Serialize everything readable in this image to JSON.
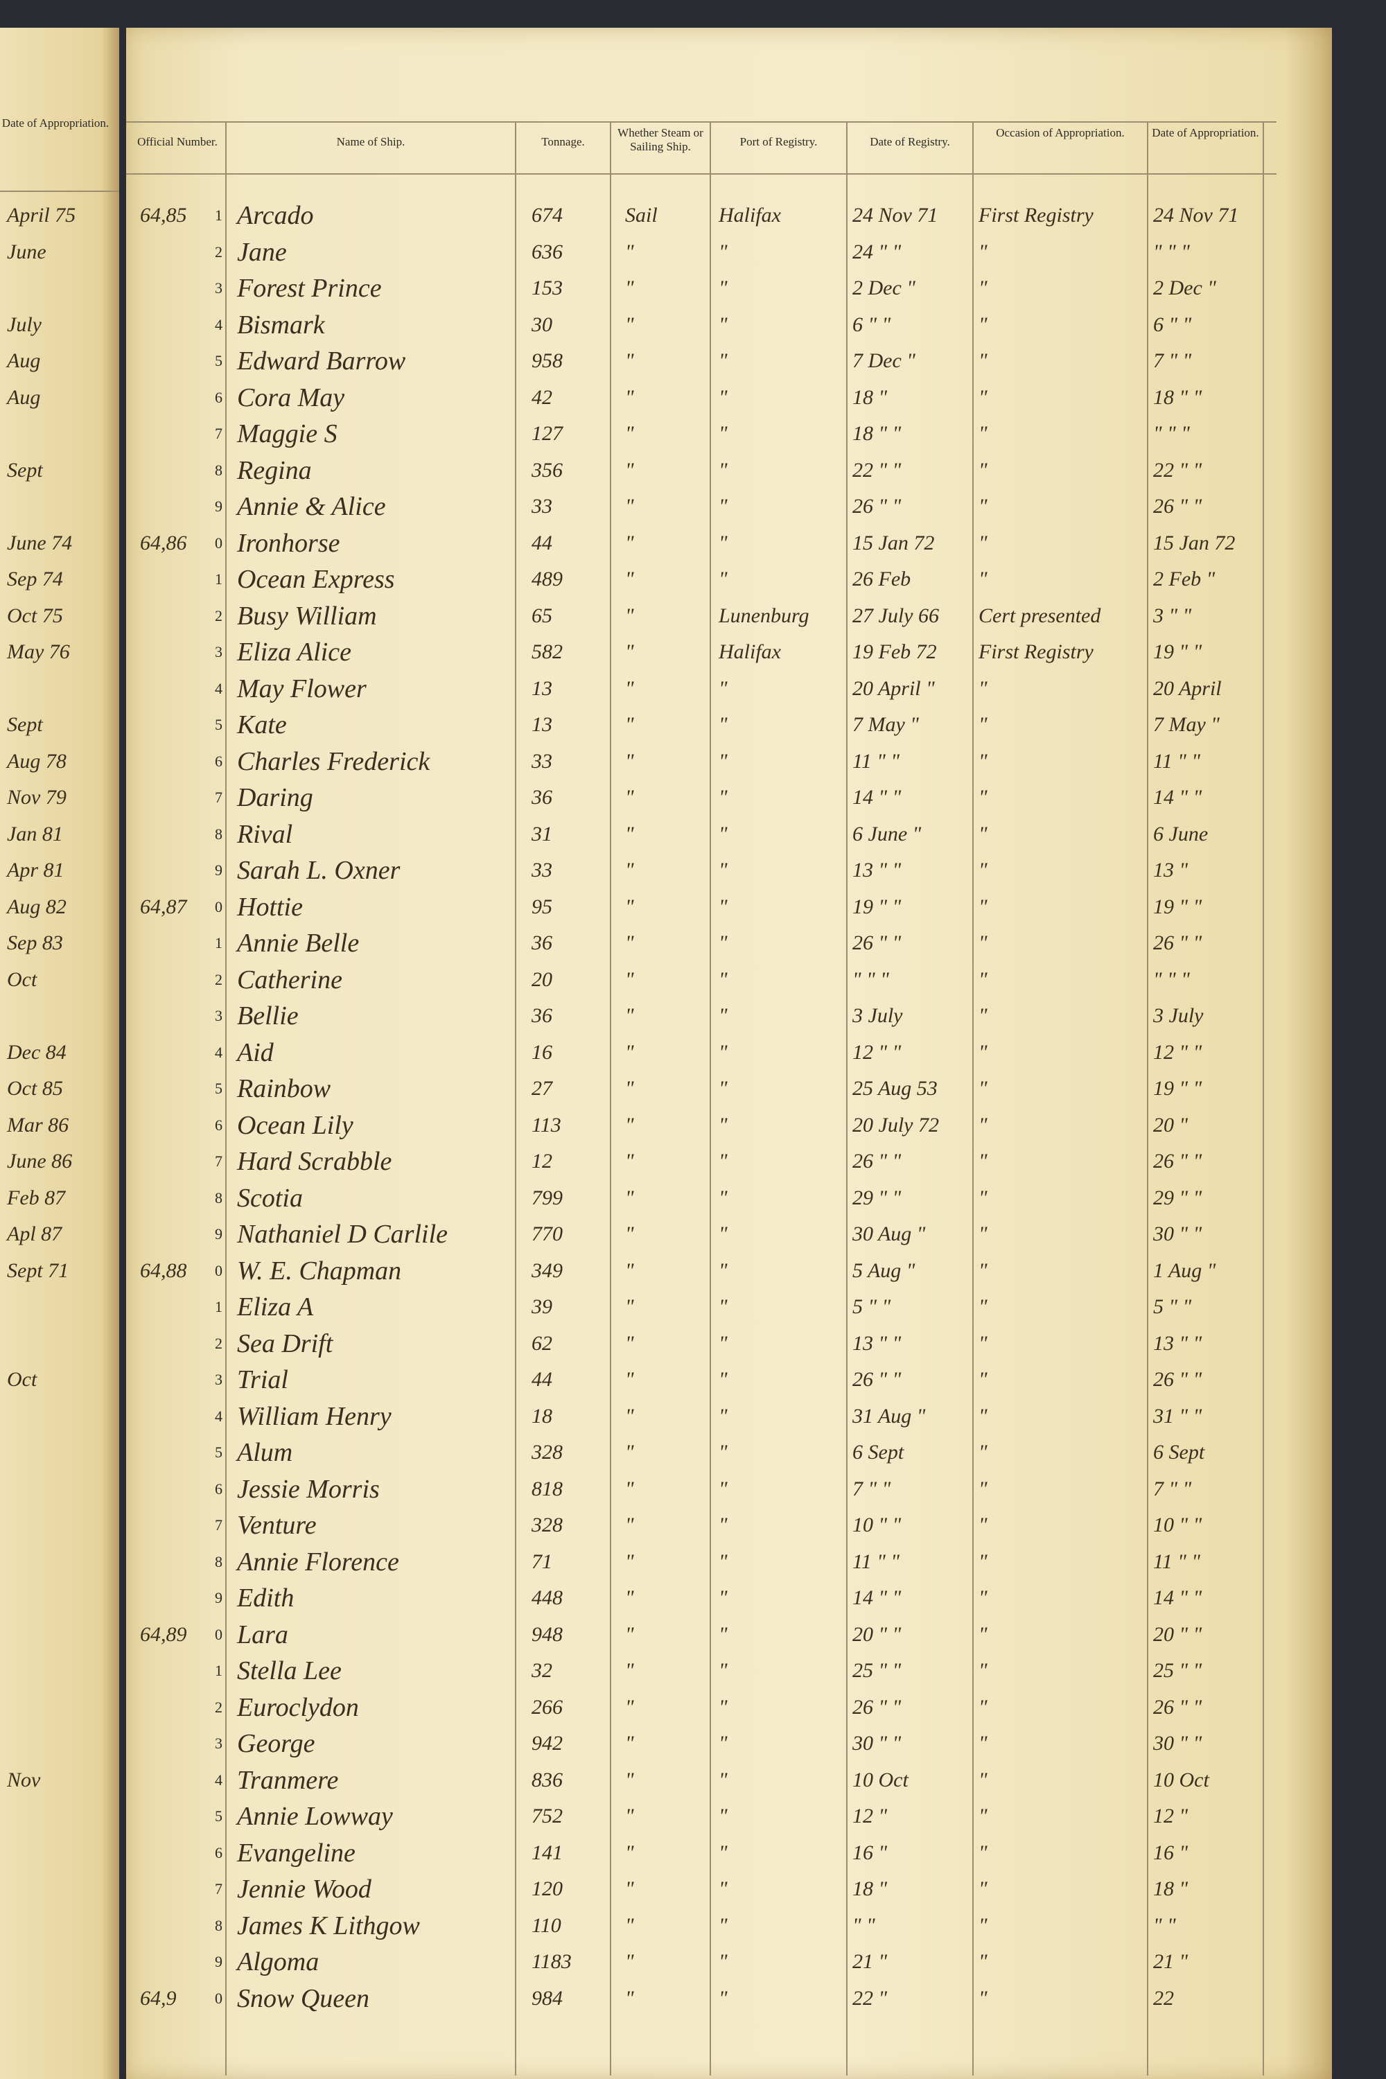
{
  "left_page": {
    "header": "Date of Appropriation.",
    "entries": [
      "April 75",
      "June",
      null,
      "July",
      "Aug",
      "Aug",
      null,
      "Sept",
      null,
      "June 74",
      "Sep 74",
      "Oct 75",
      "May 76",
      null,
      "Sept",
      "Aug 78",
      "Nov 79",
      "Jan 81",
      "Apr 81",
      "Aug 82",
      "Sep 83",
      "Oct",
      null,
      "Dec 84",
      "Oct 85",
      "Mar 86",
      "June 86",
      "Feb 87",
      "Apl 87",
      "Sept 71",
      null,
      null,
      "Oct",
      null,
      null,
      null,
      null,
      null,
      null,
      null,
      null,
      null,
      null,
      "Nov",
      null,
      null,
      null,
      null,
      null,
      null
    ]
  },
  "table": {
    "headers": [
      "Official Number.",
      "Name of Ship.",
      "Tonnage.",
      "Whether Steam or Sailing Ship.",
      "Port of Registry.",
      "Date of Registry.",
      "Occasion of Appropriation.",
      "Date of Appropriation."
    ],
    "rows": [
      [
        "64,85",
        "1",
        "Arcado",
        674,
        "Sail",
        "Halifax",
        "24 Nov 71",
        "First Registry",
        "24 Nov 71"
      ],
      [
        null,
        "2",
        "Jane",
        636,
        "\"",
        "\"",
        "24 \" \"",
        "\"",
        "\" \" \""
      ],
      [
        null,
        "3",
        "Forest Prince",
        153,
        "\"",
        "\"",
        "2 Dec \"",
        "\"",
        "2 Dec \""
      ],
      [
        null,
        "4",
        "Bismark",
        30,
        "\"",
        "\"",
        "6 \" \"",
        "\"",
        "6 \" \""
      ],
      [
        null,
        "5",
        "Edward Barrow",
        958,
        "\"",
        "\"",
        "7 Dec \"",
        "\"",
        "7 \" \""
      ],
      [
        null,
        "6",
        "Cora May",
        42,
        "\"",
        "\"",
        "18 \"",
        "\"",
        "18 \" \""
      ],
      [
        null,
        "7",
        "Maggie S",
        127,
        "\"",
        "\"",
        "18 \" \"",
        "\"",
        "\" \" \""
      ],
      [
        null,
        "8",
        "Regina",
        356,
        "\"",
        "\"",
        "22 \" \"",
        "\"",
        "22 \" \""
      ],
      [
        null,
        "9",
        "Annie & Alice",
        33,
        "\"",
        "\"",
        "26 \" \"",
        "\"",
        "26 \" \""
      ],
      [
        "64,86",
        "0",
        "Ironhorse",
        44,
        "\"",
        "\"",
        "15 Jan 72",
        "\"",
        "15 Jan 72"
      ],
      [
        null,
        "1",
        "Ocean Express",
        489,
        "\"",
        "\"",
        "26 Feb",
        "\"",
        "2 Feb \""
      ],
      [
        null,
        "2",
        "Busy William",
        65,
        "\"",
        "Lunenburg",
        "27 July 66",
        "Cert presented",
        "3 \" \""
      ],
      [
        null,
        "3",
        "Eliza Alice",
        582,
        "\"",
        "Halifax",
        "19 Feb 72",
        "First Registry",
        "19 \" \""
      ],
      [
        null,
        "4",
        "May Flower",
        13,
        "\"",
        "\"",
        "20 April \"",
        "\"",
        "20 April"
      ],
      [
        null,
        "5",
        "Kate",
        13,
        "\"",
        "\"",
        "7 May \"",
        "\"",
        "7 May \""
      ],
      [
        null,
        "6",
        "Charles Frederick",
        33,
        "\"",
        "\"",
        "11 \" \"",
        "\"",
        "11 \" \""
      ],
      [
        null,
        "7",
        "Daring",
        36,
        "\"",
        "\"",
        "14 \" \"",
        "\"",
        "14 \" \""
      ],
      [
        null,
        "8",
        "Rival",
        31,
        "\"",
        "\"",
        "6 June \"",
        "\"",
        "6 June"
      ],
      [
        null,
        "9",
        "Sarah L. Oxner",
        33,
        "\"",
        "\"",
        "13 \" \"",
        "\"",
        "13 \""
      ],
      [
        "64,87",
        "0",
        "Hottie",
        95,
        "\"",
        "\"",
        "19 \" \"",
        "\"",
        "19 \" \""
      ],
      [
        null,
        "1",
        "Annie Belle",
        36,
        "\"",
        "\"",
        "26 \" \"",
        "\"",
        "26 \" \""
      ],
      [
        null,
        "2",
        "Catherine",
        20,
        "\"",
        "\"",
        "\" \" \"",
        "\"",
        "\" \" \""
      ],
      [
        null,
        "3",
        "Bellie",
        36,
        "\"",
        "\"",
        "3 July",
        "\"",
        "3 July"
      ],
      [
        null,
        "4",
        "Aid",
        16,
        "\"",
        "\"",
        "12 \" \"",
        "\"",
        "12 \" \""
      ],
      [
        null,
        "5",
        "Rainbow",
        27,
        "\"",
        "\"",
        "25 Aug 53",
        "\"",
        "19 \" \""
      ],
      [
        null,
        "6",
        "Ocean Lily",
        113,
        "\"",
        "\"",
        "20 July 72",
        "\"",
        "20 \""
      ],
      [
        null,
        "7",
        "Hard Scrabble",
        12,
        "\"",
        "\"",
        "26 \" \"",
        "\"",
        "26 \" \""
      ],
      [
        null,
        "8",
        "Scotia",
        799,
        "\"",
        "\"",
        "29 \" \"",
        "\"",
        "29 \" \""
      ],
      [
        null,
        "9",
        "Nathaniel D Carlile",
        770,
        "\"",
        "\"",
        "30 Aug \"",
        "\"",
        "30 \" \""
      ],
      [
        "64,88",
        "0",
        "W. E. Chapman",
        349,
        "\"",
        "\"",
        "5 Aug \"",
        "\"",
        "1 Aug \""
      ],
      [
        null,
        "1",
        "Eliza A",
        39,
        "\"",
        "\"",
        "5 \" \"",
        "\"",
        "5 \" \""
      ],
      [
        null,
        "2",
        "Sea Drift",
        62,
        "\"",
        "\"",
        "13 \" \"",
        "\"",
        "13 \" \""
      ],
      [
        null,
        "3",
        "Trial",
        44,
        "\"",
        "\"",
        "26 \" \"",
        "\"",
        "26 \" \""
      ],
      [
        null,
        "4",
        "William Henry",
        18,
        "\"",
        "\"",
        "31 Aug \"",
        "\"",
        "31 \" \""
      ],
      [
        null,
        "5",
        "Alum",
        328,
        "\"",
        "\"",
        "6 Sept",
        "\"",
        "6 Sept"
      ],
      [
        null,
        "6",
        "Jessie Morris",
        818,
        "\"",
        "\"",
        "7 \" \"",
        "\"",
        "7 \" \""
      ],
      [
        null,
        "7",
        "Venture",
        328,
        "\"",
        "\"",
        "10 \" \"",
        "\"",
        "10 \" \""
      ],
      [
        null,
        "8",
        "Annie Florence",
        71,
        "\"",
        "\"",
        "11 \" \"",
        "\"",
        "11 \" \""
      ],
      [
        null,
        "9",
        "Edith",
        448,
        "\"",
        "\"",
        "14 \" \"",
        "\"",
        "14 \" \""
      ],
      [
        "64,89",
        "0",
        "Lara",
        948,
        "\"",
        "\"",
        "20 \" \"",
        "\"",
        "20 \" \""
      ],
      [
        null,
        "1",
        "Stella Lee",
        32,
        "\"",
        "\"",
        "25 \" \"",
        "\"",
        "25 \" \""
      ],
      [
        null,
        "2",
        "Euroclydon",
        266,
        "\"",
        "\"",
        "26 \" \"",
        "\"",
        "26 \" \""
      ],
      [
        null,
        "3",
        "George",
        942,
        "\"",
        "\"",
        "30 \" \"",
        "\"",
        "30 \" \""
      ],
      [
        null,
        "4",
        "Tranmere",
        836,
        "\"",
        "\"",
        "10 Oct",
        "\"",
        "10 Oct"
      ],
      [
        null,
        "5",
        "Annie Lowway",
        752,
        "\"",
        "\"",
        "12 \"",
        "\"",
        "12 \""
      ],
      [
        null,
        "6",
        "Evangeline",
        141,
        "\"",
        "\"",
        "16 \"",
        "\"",
        "16 \""
      ],
      [
        null,
        "7",
        "Jennie Wood",
        120,
        "\"",
        "\"",
        "18 \"",
        "\"",
        "18 \""
      ],
      [
        null,
        "8",
        "James K Lithgow",
        110,
        "\"",
        "\"",
        "\" \"",
        "\"",
        "\" \""
      ],
      [
        null,
        "9",
        "Algoma",
        1183,
        "\"",
        "\"",
        "21 \"",
        "\"",
        "21 \""
      ],
      [
        "64,9",
        "0",
        "Snow Queen",
        984,
        "\"",
        "\"",
        "22 \"",
        "\"",
        "22"
      ]
    ]
  }
}
